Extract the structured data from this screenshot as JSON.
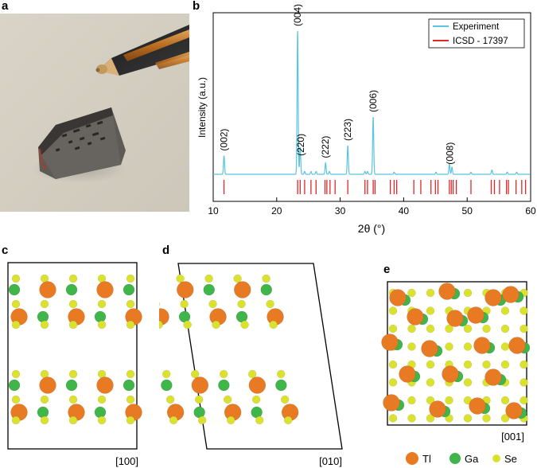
{
  "panels": {
    "a": "a",
    "b": "b",
    "c": "c",
    "d": "d",
    "e": "e"
  },
  "chart_data": {
    "type": "line",
    "xlabel": "2θ (°)",
    "ylabel": "Intensity (a.u.)",
    "xlim": [
      10,
      60
    ],
    "xticks": [
      "10",
      "20",
      "30",
      "40",
      "50",
      "60"
    ],
    "legend_position": "top-right",
    "series": [
      {
        "name": "Experiment",
        "color": "#5bc4e0",
        "peaks": [
          [
            11.7,
            0.13
          ],
          [
            23.3,
            1.0
          ],
          [
            23.7,
            0.19
          ],
          [
            24.4,
            0.02
          ],
          [
            25.4,
            0.02
          ],
          [
            26.2,
            0.02
          ],
          [
            27.7,
            0.08
          ],
          [
            28.3,
            0.02
          ],
          [
            31.2,
            0.2
          ],
          [
            33.9,
            0.02
          ],
          [
            34.3,
            0.02
          ],
          [
            35.2,
            0.4
          ],
          [
            38.5,
            0.015
          ],
          [
            45.1,
            0.015
          ],
          [
            47.2,
            0.07
          ],
          [
            47.6,
            0.05
          ],
          [
            50.6,
            0.015
          ],
          [
            53.9,
            0.03
          ],
          [
            56.3,
            0.015
          ],
          [
            57.8,
            0.015
          ]
        ]
      },
      {
        "name": "ICSD - 17397",
        "color": "#e0282a",
        "ticks": [
          11.7,
          23.3,
          23.7,
          24.4,
          25.4,
          26.2,
          27.6,
          27.9,
          28.4,
          29.2,
          31.2,
          33.9,
          34.3,
          35.2,
          35.5,
          37.9,
          38.5,
          38.9,
          41.6,
          42.7,
          44.3,
          45.0,
          45.4,
          47.2,
          47.5,
          47.8,
          48.3,
          50.6,
          53.8,
          54.3,
          55.1,
          56.2,
          56.5,
          57.7,
          58.6,
          59.2
        ]
      }
    ],
    "annotations": [
      {
        "x": 11.7,
        "text": "(002)"
      },
      {
        "x": 23.3,
        "text": "(004)"
      },
      {
        "x": 23.8,
        "text": "(220)"
      },
      {
        "x": 27.7,
        "text": "(222)"
      },
      {
        "x": 31.2,
        "text": "(223)"
      },
      {
        "x": 35.2,
        "text": "(006)"
      },
      {
        "x": 47.3,
        "text": "(008)"
      }
    ]
  },
  "structures": {
    "c_direction": "[100]",
    "d_direction": "[010]",
    "e_direction": "[001]"
  },
  "atom_legend": [
    {
      "symbol": "Tl",
      "color": "#e87a24"
    },
    {
      "symbol": "Ga",
      "color": "#3fb54a"
    },
    {
      "symbol": "Se",
      "color": "#dbe22e"
    }
  ]
}
